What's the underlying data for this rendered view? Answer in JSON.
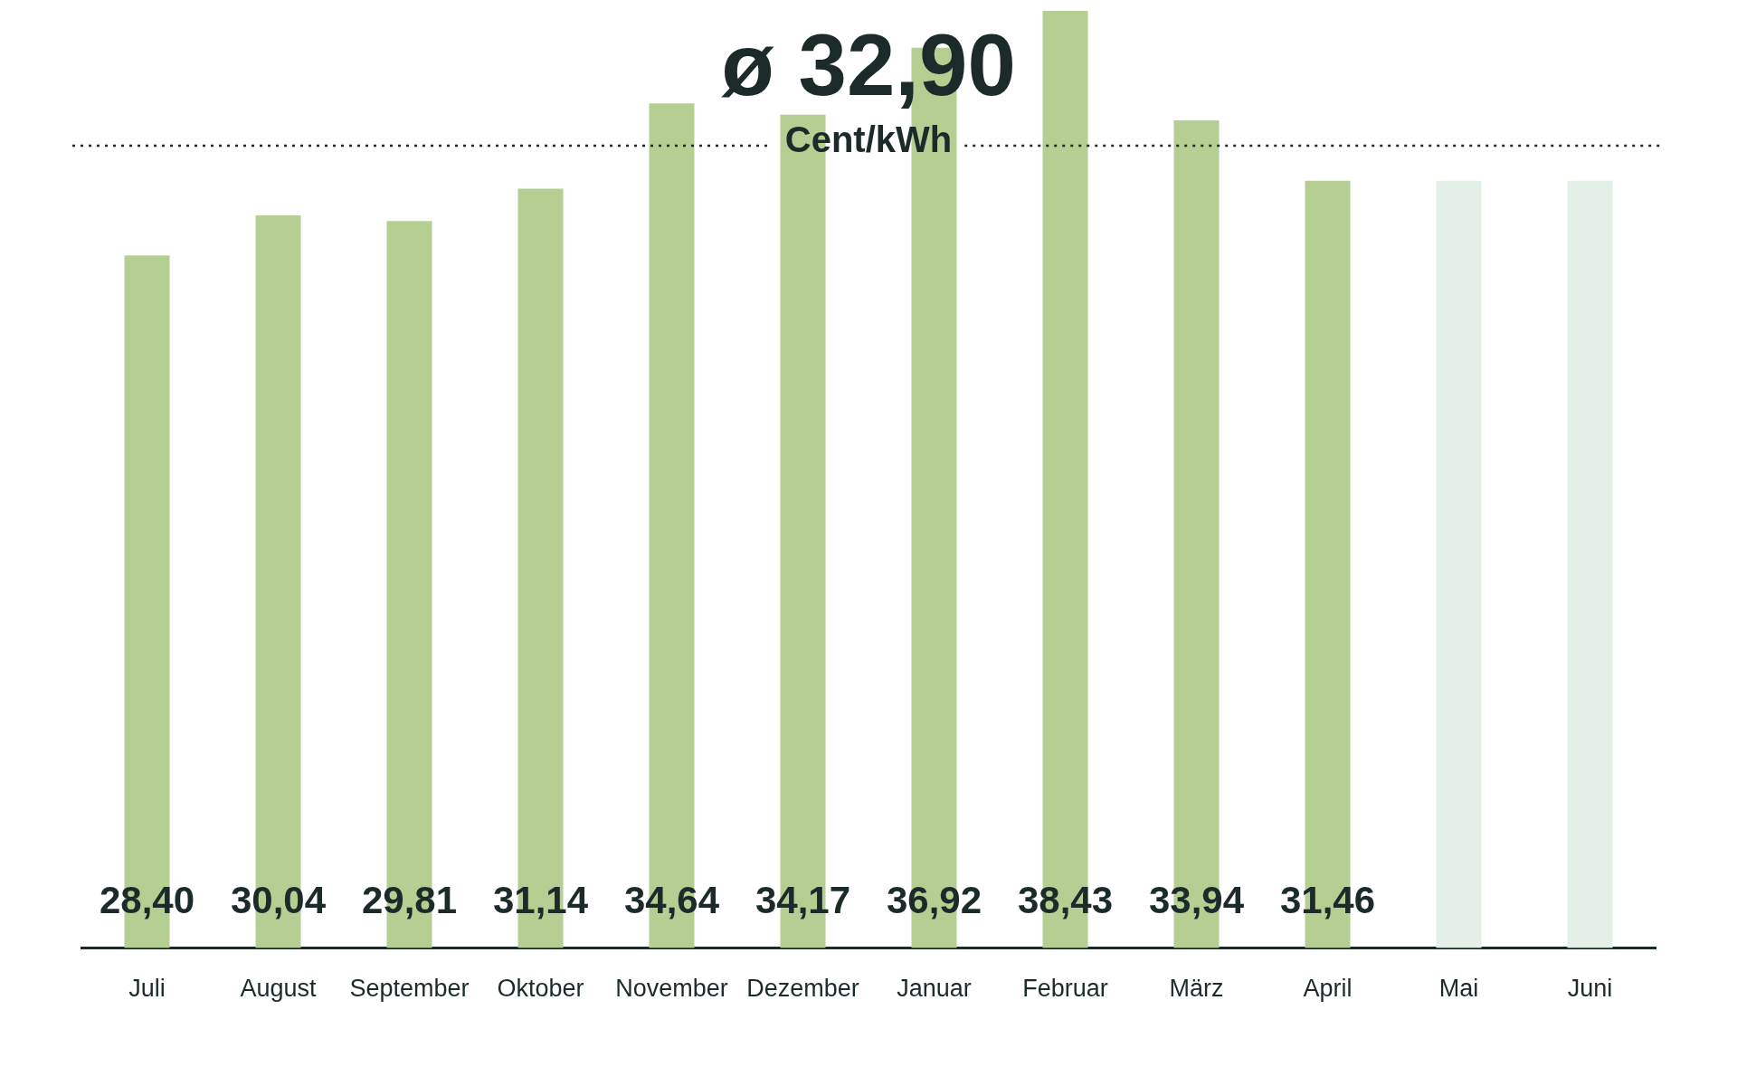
{
  "chart_data": {
    "type": "bar",
    "categories": [
      "Juli",
      "August",
      "September",
      "Oktober",
      "November",
      "Dezember",
      "Januar",
      "Februar",
      "März",
      "April",
      "Mai",
      "Juni"
    ],
    "values": [
      28.4,
      30.04,
      29.81,
      31.14,
      34.64,
      34.17,
      36.92,
      38.43,
      33.94,
      31.46,
      31.46,
      31.46
    ],
    "value_labels": [
      "28,40",
      "30,04",
      "29,81",
      "31,14",
      "34,64",
      "34,17",
      "36,92",
      "38,43",
      "33,94",
      "31,46",
      null,
      null
    ],
    "colors": [
      "#b5cf93",
      "#b5cf93",
      "#b5cf93",
      "#b5cf93",
      "#b5cf93",
      "#b5cf93",
      "#b5cf93",
      "#b5cf93",
      "#b5cf93",
      "#b5cf93",
      "#e3efe7",
      "#e3efe7"
    ],
    "ref_lines": [
      {
        "axis": "y",
        "value": 32.9,
        "label": "ø 32,90",
        "line_style": "dotted",
        "color": "#1c2b2a"
      }
    ],
    "annotations": [
      "Cent/kWh"
    ],
    "grid": false,
    "legend": false
  }
}
